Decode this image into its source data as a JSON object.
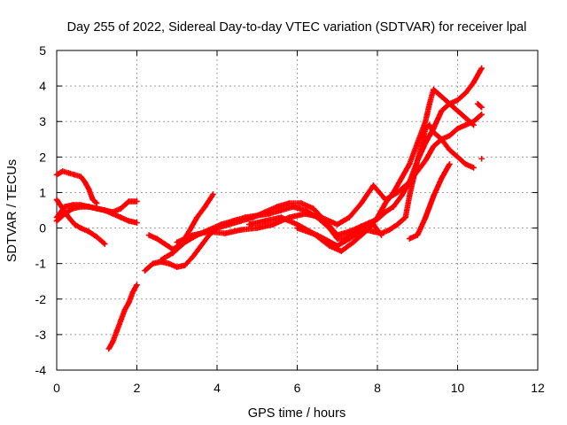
{
  "chart_data": {
    "type": "scatter",
    "title": "Day 255 of 2022, Sidereal Day-to-day VTEC variation (SDTVAR) for receiver lpal",
    "xlabel": "GPS time / hours",
    "ylabel": "SDTVAR / TECUs",
    "xlim": [
      0,
      12
    ],
    "ylim": [
      -4,
      5
    ],
    "xticks": [
      "0",
      "2",
      "4",
      "6",
      "8",
      "10",
      "12"
    ],
    "yticks": [
      "-4",
      "-3",
      "-2",
      "-1",
      "0",
      "1",
      "2",
      "3",
      "4",
      "5"
    ],
    "grid": true,
    "marker": "plus",
    "color": "#ff0000",
    "series": [
      {
        "x": [
          0,
          0.2,
          0.4,
          0.6,
          0.8,
          1.0,
          1.2,
          1.4,
          1.6,
          1.8,
          2.0
        ],
        "values": [
          0.2,
          0.4,
          0.55,
          0.6,
          0.6,
          0.55,
          0.5,
          0.4,
          0.3,
          0.2,
          0.15
        ]
      },
      {
        "x": [
          0,
          0.2,
          0.4,
          0.6,
          0.8,
          1.0,
          1.2,
          1.4,
          1.6,
          1.8,
          2.0
        ],
        "values": [
          0.3,
          0.6,
          0.65,
          0.65,
          0.6,
          0.55,
          0.5,
          0.45,
          0.55,
          0.75,
          0.75
        ]
      },
      {
        "x": [
          0,
          0.15,
          0.3,
          0.45,
          0.6,
          0.8,
          1.0,
          1.2
        ],
        "values": [
          0.8,
          0.55,
          0.3,
          0.1,
          0.0,
          -0.1,
          -0.25,
          -0.45
        ]
      },
      {
        "x": [
          0,
          0.15,
          0.3,
          0.45,
          0.6,
          0.7,
          0.8,
          0.9,
          1.0
        ],
        "values": [
          1.5,
          1.6,
          1.55,
          1.5,
          1.45,
          1.3,
          1.1,
          0.8,
          0.7
        ]
      },
      {
        "x": [
          1.3,
          1.4,
          1.5,
          1.6,
          1.7,
          1.8,
          1.9,
          2.0
        ],
        "values": [
          -3.4,
          -3.2,
          -2.9,
          -2.6,
          -2.3,
          -2.1,
          -1.8,
          -1.6
        ]
      },
      {
        "x": [
          2.3,
          2.5,
          2.7,
          2.9,
          3.1,
          3.3,
          3.5,
          3.7,
          3.9
        ],
        "values": [
          -0.2,
          -0.3,
          -0.45,
          -0.6,
          -0.45,
          -0.1,
          0.3,
          0.6,
          0.95
        ]
      },
      {
        "x": [
          2.2,
          2.4,
          2.6,
          2.8,
          3.0,
          3.2,
          3.4,
          3.6,
          3.8,
          4.0,
          4.3,
          4.6,
          4.9,
          5.2,
          5.5,
          5.8,
          6.1,
          6.4,
          6.7,
          7.0,
          7.3,
          7.6,
          7.9,
          8.1
        ],
        "values": [
          -1.2,
          -1.0,
          -0.95,
          -1.0,
          -1.1,
          -1.05,
          -0.8,
          -0.5,
          -0.2,
          0.0,
          0.1,
          0.2,
          0.3,
          0.45,
          0.6,
          0.7,
          0.7,
          0.55,
          0.2,
          -0.2,
          -0.1,
          0.05,
          0.1,
          -0.2
        ]
      },
      {
        "x": [
          2.6,
          2.9,
          3.2,
          3.5,
          3.8,
          4.1,
          4.4,
          4.7,
          5.0,
          5.3,
          5.6,
          5.9,
          6.2,
          6.5,
          6.8,
          7.0,
          7.2,
          7.4,
          7.6,
          7.8,
          8.0,
          8.2,
          8.4,
          8.6,
          8.8,
          9.0,
          9.2,
          9.4,
          9.6,
          9.8,
          10.0,
          10.2,
          10.4,
          10.6
        ],
        "values": [
          -0.9,
          -0.7,
          -0.4,
          -0.2,
          -0.05,
          0.1,
          0.2,
          0.3,
          0.35,
          0.4,
          0.5,
          0.6,
          0.5,
          0.3,
          0.0,
          -0.3,
          -0.3,
          -0.1,
          0.05,
          0.15,
          0.25,
          0.45,
          0.6,
          0.9,
          1.3,
          1.6,
          1.9,
          2.3,
          2.5,
          2.6,
          2.8,
          2.9,
          3.0,
          3.2
        ]
      },
      {
        "x": [
          3.0,
          3.4,
          3.8,
          4.2,
          4.6,
          5.0,
          5.4,
          5.8,
          6.2,
          6.6,
          7.0,
          7.3,
          7.6,
          7.9,
          8.2,
          8.5,
          8.8,
          9.0,
          9.2,
          9.4,
          9.6,
          9.8,
          10.0,
          10.2,
          10.4,
          10.6
        ],
        "values": [
          -0.4,
          -0.2,
          -0.1,
          -0.15,
          -0.05,
          0.0,
          0.1,
          0.3,
          0.4,
          0.3,
          0.1,
          0.3,
          0.7,
          1.2,
          0.8,
          1.0,
          1.3,
          1.9,
          2.4,
          2.8,
          3.3,
          3.5,
          3.6,
          3.8,
          4.1,
          4.5
        ]
      },
      {
        "x": [
          4.8,
          5.2,
          5.6,
          6.0,
          6.4,
          6.8,
          7.1,
          7.4,
          7.6,
          7.8,
          8.0,
          8.2,
          8.4,
          8.6,
          8.8,
          9.0,
          9.2,
          9.3,
          9.4,
          9.6,
          9.8,
          10.0,
          10.2,
          10.4
        ],
        "values": [
          0.1,
          0.2,
          0.3,
          0.1,
          -0.15,
          -0.5,
          -0.65,
          -0.4,
          -0.2,
          0.0,
          0.3,
          0.7,
          1.0,
          1.4,
          1.8,
          2.4,
          3.0,
          3.5,
          3.9,
          3.7,
          3.5,
          3.3,
          3.1,
          2.9
        ]
      },
      {
        "x": [
          6.0,
          6.5,
          7.0,
          7.3,
          7.5,
          7.7,
          7.9,
          8.1,
          8.3,
          8.5,
          8.7,
          8.8,
          8.9,
          9.0,
          9.1,
          9.2,
          9.3,
          9.4,
          9.6,
          9.8,
          10.0,
          10.2,
          10.4
        ],
        "values": [
          0.0,
          -0.2,
          -0.5,
          -0.3,
          -0.15,
          -0.05,
          -0.1,
          -0.15,
          -0.05,
          0.1,
          0.3,
          0.9,
          1.4,
          1.9,
          2.3,
          2.8,
          2.9,
          2.7,
          2.5,
          2.2,
          2.0,
          1.8,
          1.7
        ]
      },
      {
        "x": [
          8.8,
          9.0,
          9.2,
          9.4,
          9.6,
          9.8
        ],
        "values": [
          -0.3,
          -0.2,
          0.3,
          0.9,
          1.4,
          1.8
        ]
      },
      {
        "x": [
          10.5,
          10.6
        ],
        "values": [
          3.5,
          3.4
        ]
      },
      {
        "x": [
          10.6
        ],
        "values": [
          1.95
        ]
      }
    ]
  }
}
